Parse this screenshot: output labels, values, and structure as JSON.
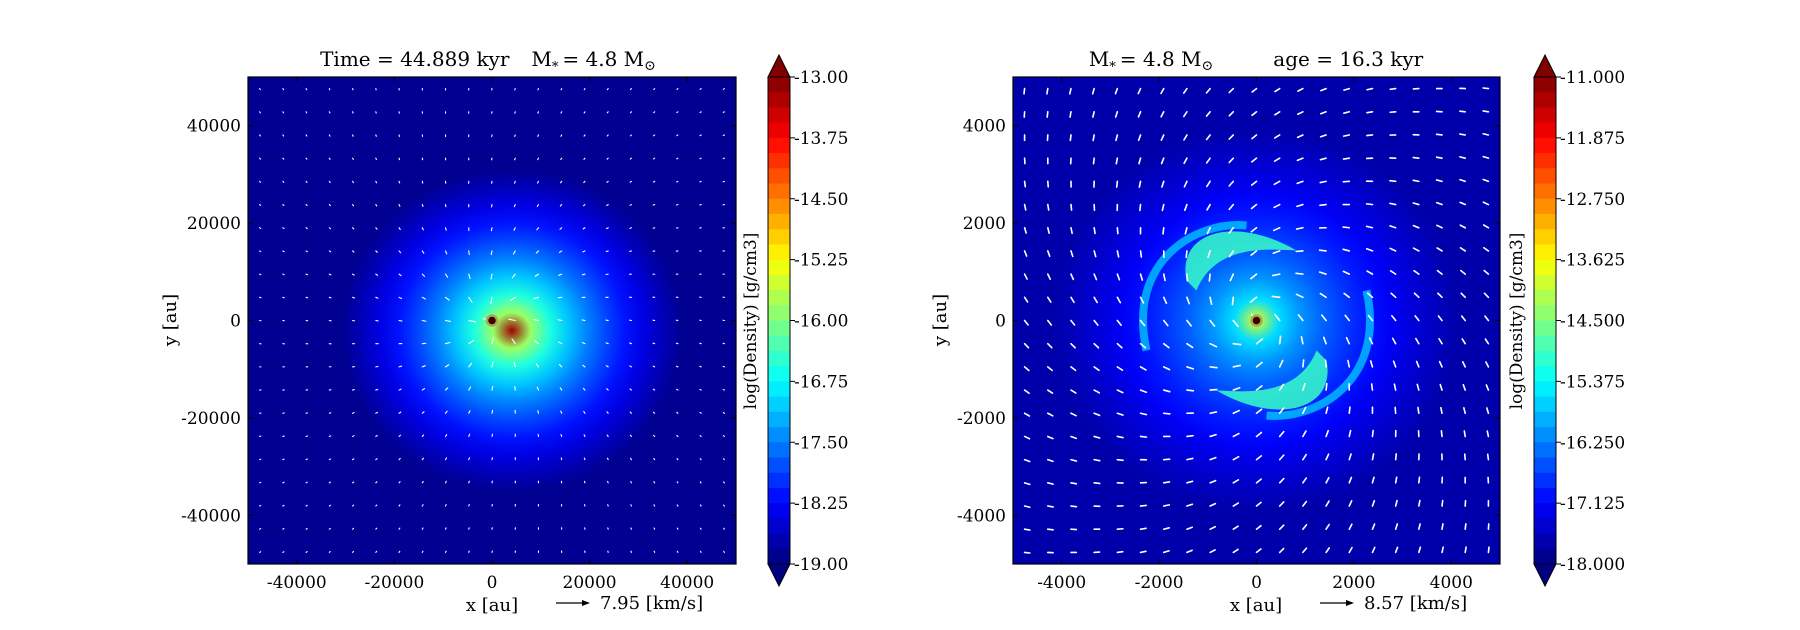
{
  "chart_data": [
    {
      "type": "heatmap",
      "title": "Time = 44.889 kyr    M$_*$ = 4.8 M$_\\odot$",
      "title_parts": {
        "time": "Time = 44.889 kyr",
        "mass": "M",
        "mass_sub": "*",
        "mass_value": "= 4.8 M",
        "mass_sun": "⊙"
      },
      "xlabel": "x [au]",
      "ylabel": "y [au]",
      "xlim": [
        -50000,
        50000
      ],
      "ylim": [
        -50000,
        50000
      ],
      "xticks": [
        -40000,
        -20000,
        0,
        20000,
        40000
      ],
      "yticks": [
        -40000,
        -20000,
        0,
        20000,
        40000
      ],
      "xtick_labels": [
        "-40000",
        "-20000",
        "0",
        "20000",
        "40000"
      ],
      "ytick_labels": [
        "40000",
        "20000",
        "0",
        "-20000",
        "-40000"
      ],
      "colorbar": {
        "label": "log(Density) [g/cm3]",
        "min": -19.0,
        "max": -13.0,
        "ticks": [
          "-13.00",
          "-13.75",
          "-14.50",
          "-15.25",
          "-16.00",
          "-16.75",
          "-17.50",
          "-18.25",
          "-19.00"
        ],
        "extend": "both"
      },
      "quiver_key": {
        "value": 7.95,
        "label": "7.95 [km/s]"
      },
      "sink_position": [
        0,
        0
      ],
      "background_logrho": -18.9,
      "peak_logrho": -13.2
    },
    {
      "type": "heatmap",
      "title": "M$_*$ = 4.8 M$_\\odot$        age = 16.3 kyr",
      "title_parts": {
        "mass": "M",
        "mass_sub": "*",
        "mass_value": "= 4.8 M",
        "mass_sun": "⊙",
        "age": "age = 16.3 kyr"
      },
      "xlabel": "x [au]",
      "ylabel": "y [au]",
      "xlim": [
        -5000,
        5000
      ],
      "ylim": [
        -5000,
        5000
      ],
      "xticks": [
        -4000,
        -2000,
        0,
        2000,
        4000
      ],
      "yticks": [
        -4000,
        -2000,
        0,
        2000,
        4000
      ],
      "xtick_labels": [
        "-4000",
        "-2000",
        "0",
        "2000",
        "4000"
      ],
      "ytick_labels": [
        "4000",
        "2000",
        "0",
        "-2000",
        "-4000"
      ],
      "colorbar": {
        "label": "log(Density) [g/cm3]",
        "min": -18.0,
        "max": -11.0,
        "ticks": [
          "-11.000",
          "-11.875",
          "-12.750",
          "-13.625",
          "-14.500",
          "-15.375",
          "-16.250",
          "-17.125",
          "-18.000"
        ],
        "extend": "both"
      },
      "quiver_key": {
        "value": 8.57,
        "label": "8.57 [km/s]"
      },
      "sink_position": [
        0,
        0
      ],
      "background_logrho": -17.7,
      "peak_logrho": -13.8
    }
  ],
  "colors": {
    "vector": "#ffffff",
    "sink_ring": "#a9a94a",
    "frame": "#000000"
  }
}
